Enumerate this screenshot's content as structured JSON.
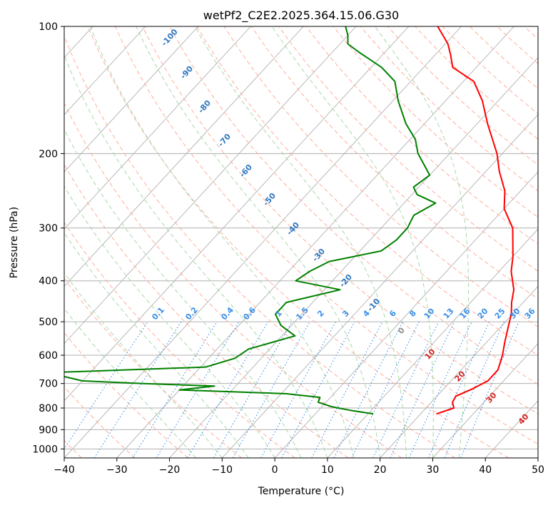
{
  "chart_data": {
    "type": "line",
    "title": "wetPf2_C2E2.2025.364.15.06.G30",
    "xlabel": "Temperature (°C)",
    "ylabel": "Pressure (hPa)",
    "xlim": [
      -40,
      50
    ],
    "ylim": [
      1050,
      100
    ],
    "y_scale": "log",
    "skew": "skew-T",
    "grid": true,
    "xticks": [
      "−40",
      "−30",
      "−20",
      "−10",
      "0",
      "10",
      "20",
      "30",
      "40",
      "50"
    ],
    "yticks": [
      "100",
      "200",
      "300",
      "400",
      "500",
      "600",
      "700",
      "800",
      "900",
      "1000"
    ],
    "temperature_profile": {
      "color": "#ff0000",
      "points": [
        [
          826,
          23.0
        ],
        [
          800,
          25.3
        ],
        [
          775,
          24.0
        ],
        [
          750,
          23.6
        ],
        [
          720,
          25.5
        ],
        [
          690,
          27.0
        ],
        [
          650,
          27.0
        ],
        [
          600,
          25.3
        ],
        [
          560,
          23.5
        ],
        [
          520,
          21.7
        ],
        [
          480,
          19.8
        ],
        [
          450,
          17.8
        ],
        [
          420,
          16.0
        ],
        [
          380,
          12.3
        ],
        [
          350,
          10.0
        ],
        [
          300,
          5.0
        ],
        [
          270,
          0.0
        ],
        [
          245,
          -3.0
        ],
        [
          220,
          -7.5
        ],
        [
          200,
          -11.0
        ],
        [
          170,
          -18.0
        ],
        [
          150,
          -23.0
        ],
        [
          135,
          -28.0
        ],
        [
          125,
          -34.5
        ],
        [
          117,
          -37.0
        ],
        [
          110,
          -39.5
        ],
        [
          100,
          -44.5
        ]
      ]
    },
    "dewpoint_profile": {
      "color": "#008000",
      "points": [
        [
          826,
          11.0
        ],
        [
          810,
          6.0
        ],
        [
          795,
          2.0
        ],
        [
          775,
          -1.5
        ],
        [
          755,
          -2.0
        ],
        [
          740,
          -9.0
        ],
        [
          725,
          -30.0
        ],
        [
          710,
          -24.0
        ],
        [
          700,
          -38.0
        ],
        [
          690,
          -50.0
        ],
        [
          660,
          -58.0
        ],
        [
          640,
          -29.0
        ],
        [
          610,
          -25.0
        ],
        [
          580,
          -24.0
        ],
        [
          540,
          -17.5
        ],
        [
          510,
          -22.0
        ],
        [
          480,
          -25.0
        ],
        [
          450,
          -25.0
        ],
        [
          420,
          -17.0
        ],
        [
          400,
          -27.0
        ],
        [
          380,
          -26.0
        ],
        [
          360,
          -24.0
        ],
        [
          340,
          -16.0
        ],
        [
          320,
          -15.0
        ],
        [
          300,
          -15.0
        ],
        [
          280,
          -16.0
        ],
        [
          262,
          -14.0
        ],
        [
          250,
          -19.0
        ],
        [
          240,
          -21.0
        ],
        [
          225,
          -20.0
        ],
        [
          210,
          -23.5
        ],
        [
          200,
          -26.0
        ],
        [
          185,
          -29.0
        ],
        [
          170,
          -33.5
        ],
        [
          150,
          -39.0
        ],
        [
          135,
          -43.0
        ],
        [
          125,
          -48.0
        ],
        [
          115,
          -55.0
        ],
        [
          110,
          -58.5
        ],
        [
          105,
          -60.0
        ],
        [
          100,
          -62.0
        ]
      ]
    },
    "dry_adiabat_labels": [
      "-100",
      "-90",
      "-80",
      "-70",
      "-60",
      "-50",
      "-40",
      "-30",
      "-20",
      "-10",
      "0",
      "10",
      "20",
      "30",
      "40"
    ],
    "mixing_ratio_labels": [
      "0.1",
      "0.2",
      "0.4",
      "0.6",
      "1",
      "1.5",
      "2",
      "3",
      "4",
      "6",
      "8",
      "10",
      "13",
      "16",
      "20",
      "25",
      "30",
      "36"
    ],
    "colors": {
      "isotherm": "#b0b0b0",
      "dry_adiabat": "#ffad9a",
      "moist_adiabat": "#a8d8a8",
      "mixing_ratio": "#3a8fe8",
      "adiabat_label_cold": "#2f78c0",
      "adiabat_label_warm": "#d62020"
    }
  }
}
